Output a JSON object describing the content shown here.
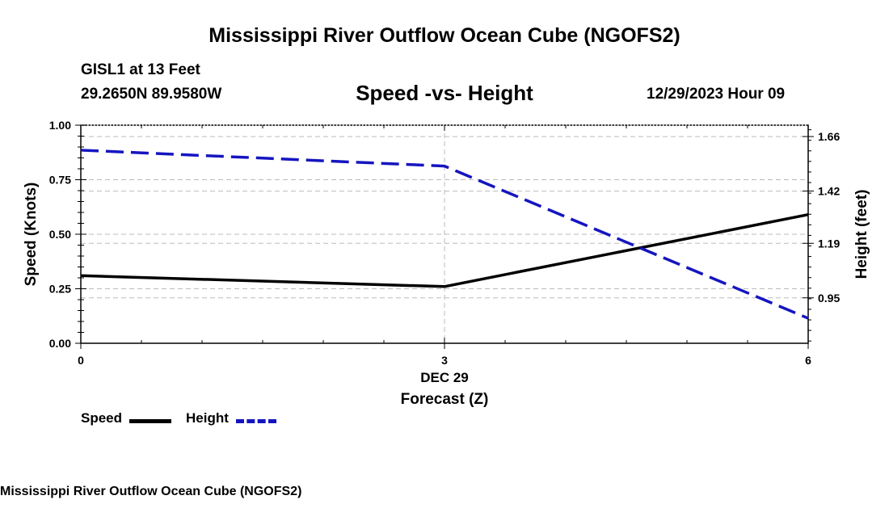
{
  "header": {
    "title": "Mississippi River Outflow Ocean Cube (NGOFS2)",
    "station": "GISL1 at 13 Feet",
    "coords": "29.2650N  89.9580W",
    "timestamp": "12/29/2023 Hour 09"
  },
  "footer": {
    "title": "Mississippi River Outflow Ocean Cube (NGOFS2)"
  },
  "chart_data": {
    "type": "line",
    "title": "Speed -vs- Height",
    "xlabel": "Forecast (Z)",
    "x_ticks": [
      "0",
      "3",
      "6"
    ],
    "x_date_label": "DEC 29",
    "x": [
      0,
      3,
      6
    ],
    "xlim": [
      0,
      6
    ],
    "ylabel_left": "Speed (Knots)",
    "ylim_left": [
      0,
      1
    ],
    "y_ticks_left": [
      "0.00",
      "0.25",
      "0.50",
      "0.75",
      "1.00"
    ],
    "ylabel_right": "Height (feet)",
    "ylim_right": [
      0.75,
      1.71
    ],
    "y_ticks_right": [
      "0.95",
      "1.19",
      "1.42",
      "1.66"
    ],
    "grid": true,
    "legend_position": "bottom-left",
    "series": [
      {
        "name": "Speed",
        "axis": "left",
        "color": "#000000",
        "style": "solid",
        "values": [
          0.31,
          0.26,
          0.59
        ]
      },
      {
        "name": "Height",
        "axis": "right",
        "color": "#1515c0",
        "style": "dashed",
        "values": [
          1.6,
          1.53,
          0.86
        ]
      }
    ]
  }
}
